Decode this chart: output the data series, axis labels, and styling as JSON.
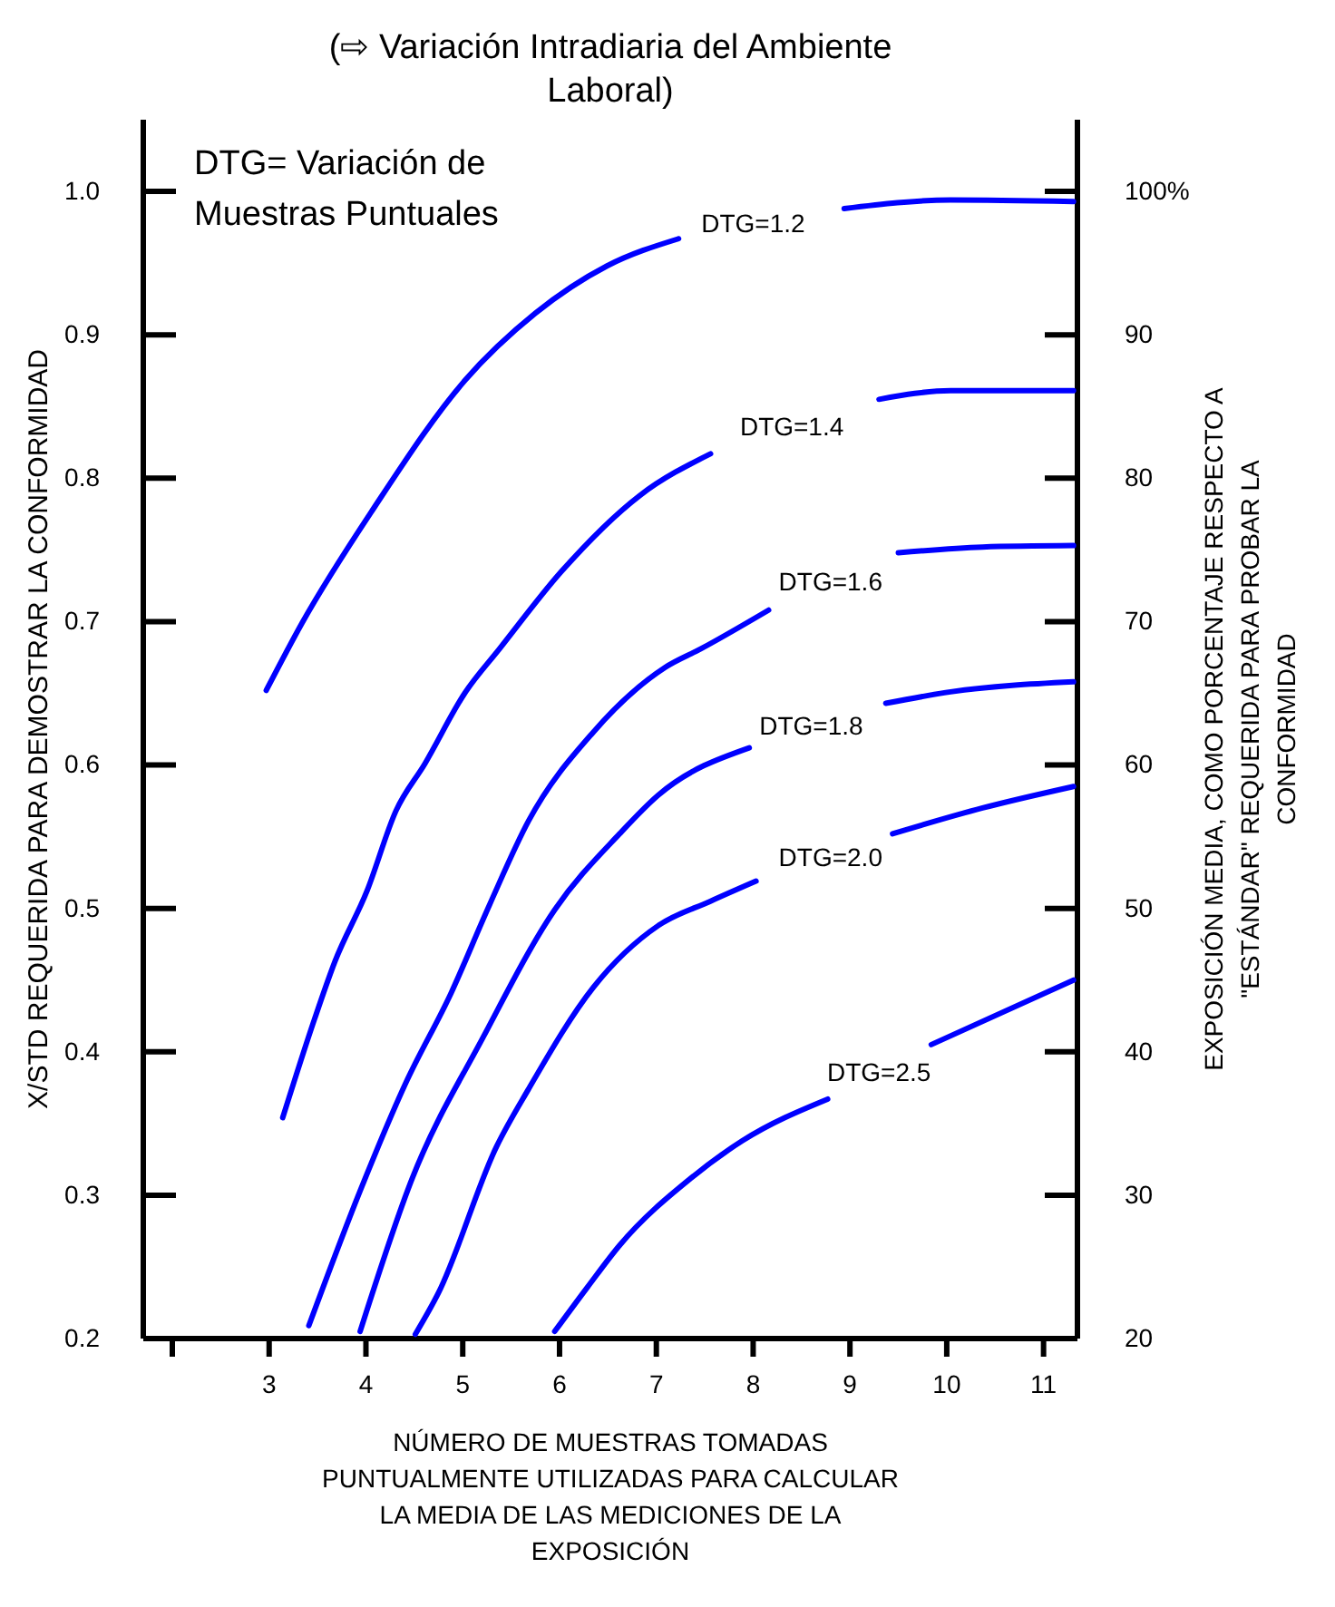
{
  "chart_data": {
    "type": "line",
    "title": "(⇨ Variación Intradiaria del Ambiente Laboral)",
    "xlabel": "NÚMERO DE MUESTRAS TOMADAS PUNTUALMENTE UTILIZADAS PARA CALCULAR LA MEDIA DE LAS MEDICIONES DE LA EXPOSICIÓN",
    "ylabel": "X/STD REQUERIDA PARA DEMOSTRAR LA CONFORMIDAD",
    "y2label": "EXPOSICIÓN MEDIA, COMO PORCENTAJE RESPECTO A \"ESTÁNDAR\" REQUERIDA PARA PROBAR LA CONFORMIDAD",
    "xlim": [
      1.7,
      11.35
    ],
    "xticks": [
      {
        "value": 2,
        "label": null
      },
      3,
      4,
      5,
      6,
      7,
      8,
      9,
      10,
      11
    ],
    "ylim": [
      0.2,
      1.05
    ],
    "yticks": [
      {
        "value": 0.2,
        "label": "0.2"
      },
      {
        "value": 0.3,
        "label": "0.3"
      },
      {
        "value": 0.4,
        "label": "0.4"
      },
      {
        "value": 0.5,
        "label": "0.5"
      },
      {
        "value": 0.6,
        "label": "0.6"
      },
      {
        "value": 0.7,
        "label": "0.7"
      },
      {
        "value": 0.8,
        "label": "0.8"
      },
      {
        "value": 0.9,
        "label": "0.9"
      },
      {
        "value": 1.0,
        "label": "1.0"
      }
    ],
    "y2lim": [
      20,
      105
    ],
    "y2ticks": [
      20,
      30,
      40,
      50,
      60,
      70,
      80,
      90,
      {
        "value": 100,
        "label": "100%"
      }
    ],
    "grid": false,
    "legend": false,
    "marker": "none",
    "line_style": "solid",
    "series": [
      {
        "name": "DTG=1.2",
        "color": "#0000ff",
        "x": [
          2.97,
          3.34,
          4.08,
          5.02,
          5.75,
          6.49,
          7.23,
          8.0,
          8.94,
          10.04,
          11.31
        ],
        "values": [
          0.652,
          0.699,
          0.779,
          0.868,
          0.915,
          0.948,
          0.967,
          null,
          0.988,
          0.994,
          0.993
        ]
      },
      {
        "name": "DTG=1.4",
        "color": "#0000ff",
        "x": [
          3.14,
          3.47,
          3.68,
          4.01,
          4.31,
          4.61,
          5.02,
          5.38,
          6.02,
          6.83,
          7.56,
          8.4,
          9.3,
          10.04,
          11.31
        ],
        "values": [
          0.354,
          0.423,
          0.463,
          0.512,
          0.568,
          0.601,
          0.65,
          0.681,
          0.735,
          0.788,
          0.817,
          null,
          0.855,
          0.861,
          0.861
        ]
      },
      {
        "name": "DTG=1.6",
        "color": "#0000ff",
        "x": [
          3.41,
          3.94,
          4.41,
          4.88,
          5.28,
          5.68,
          6.35,
          7.09,
          7.46,
          8.16,
          8.8,
          9.5,
          10.37,
          11.31
        ],
        "values": [
          0.209,
          0.303,
          0.378,
          0.441,
          0.503,
          0.561,
          0.623,
          0.668,
          0.681,
          0.708,
          null,
          0.748,
          0.752,
          0.753
        ]
      },
      {
        "name": "DTG=1.8",
        "color": "#0000ff",
        "x": [
          3.94,
          4.48,
          5.21,
          5.95,
          6.62,
          7.02,
          7.96,
          8.6,
          9.37,
          10.04,
          11.31
        ],
        "values": [
          0.205,
          0.312,
          0.41,
          0.499,
          0.552,
          0.579,
          0.612,
          null,
          0.643,
          0.651,
          0.658
        ]
      },
      {
        "name": "DTG=2.0",
        "color": "#0000ff",
        "x": [
          4.51,
          4.75,
          5.35,
          5.68,
          6.35,
          7.02,
          7.56,
          8.03,
          8.8,
          9.44,
          10.37,
          11.31
        ],
        "values": [
          0.203,
          0.232,
          0.334,
          0.374,
          0.445,
          0.488,
          0.505,
          0.519,
          null,
          0.552,
          0.57,
          0.585
        ]
      },
      {
        "name": "DTG=2.5",
        "color": "#0000ff",
        "x": [
          5.95,
          6.29,
          6.62,
          7.36,
          7.89,
          8.77,
          9.3,
          9.84,
          11.31
        ],
        "values": [
          0.205,
          0.236,
          0.265,
          0.312,
          0.338,
          0.367,
          null,
          0.405,
          0.45
        ]
      }
    ],
    "annotations": [
      "DTG= Variación de Muestras Puntuales"
    ]
  }
}
